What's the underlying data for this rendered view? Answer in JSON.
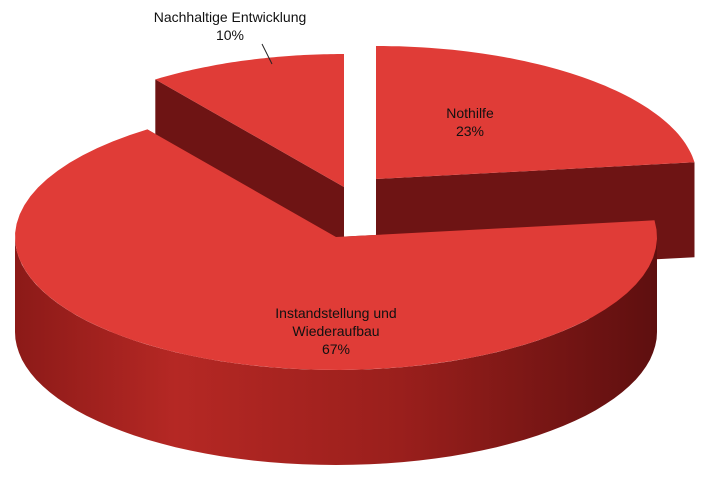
{
  "chart_data": {
    "type": "pie3d",
    "categories": [
      "Nothilfe",
      "Instandstellung und Wiederaufbau",
      "Nachhaltige Entwicklung"
    ],
    "values": [
      23,
      67,
      10
    ],
    "value_labels": [
      "23%",
      "67%",
      "10%"
    ],
    "color": "#e03c37"
  }
}
